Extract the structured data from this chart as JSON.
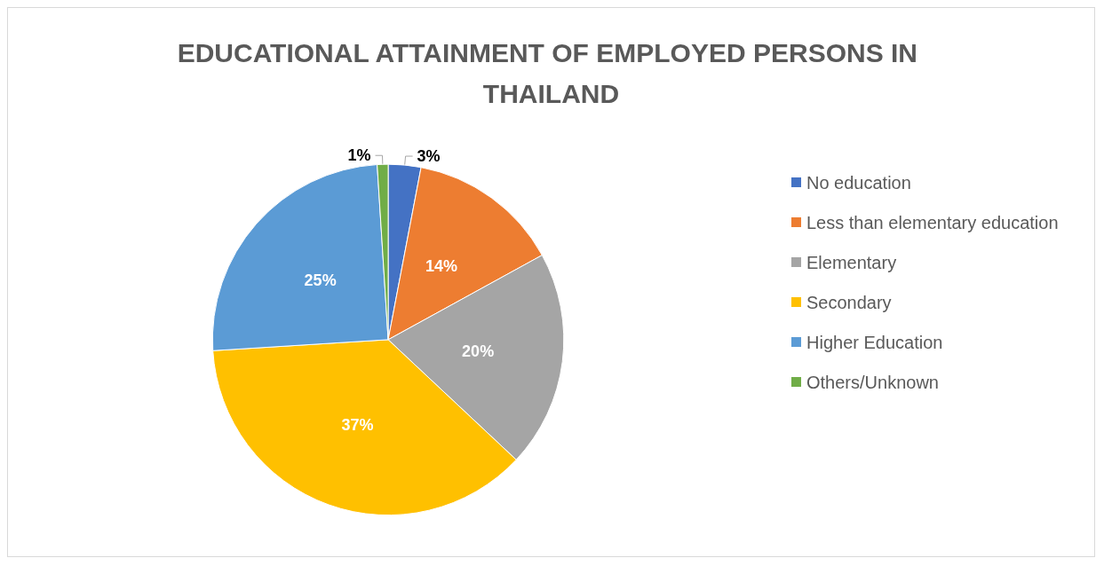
{
  "chart_data": {
    "type": "pie",
    "title": "EDUCATIONAL ATTAINMENT OF EMPLOYED PERSONS IN THAILAND",
    "categories": [
      "No education",
      "Less than elementary education",
      "Elementary",
      "Secondary",
      "Higher Education",
      "Others/Unknown"
    ],
    "values": [
      3,
      14,
      20,
      37,
      25,
      1
    ],
    "colors": [
      "#4472c4",
      "#ed7d31",
      "#a5a5a5",
      "#ffc000",
      "#5b9bd5",
      "#70ad47"
    ],
    "value_labels": [
      "3%",
      "14%",
      "20%",
      "37%",
      "25%",
      "1%"
    ],
    "legend": "right"
  }
}
